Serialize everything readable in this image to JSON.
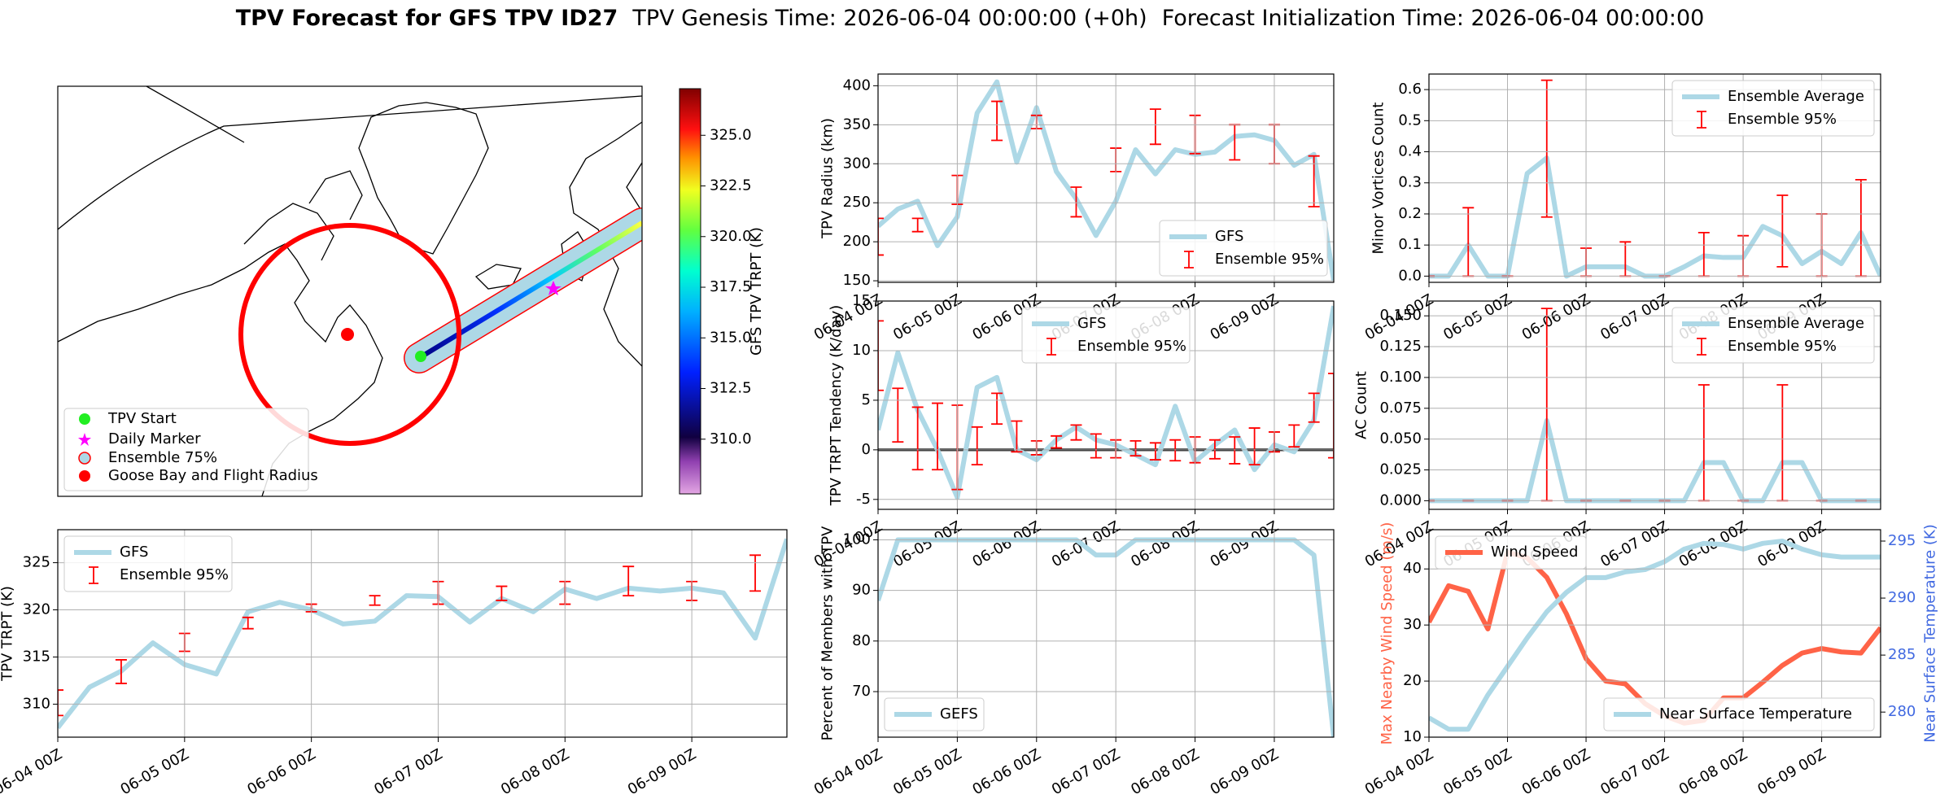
{
  "title": "TPV Forecast for GFS TPV ID27",
  "genesis_time": "TPV Genesis Time: 2026-06-04 00:00:00 (+0h)",
  "init_time": "Forecast Initialization Time: 2026-06-04 00:00:00",
  "map": {
    "legend": [
      "TPV Start",
      "Daily Marker",
      "Ensemble 75%",
      "Goose Bay and Flight Radius"
    ],
    "colorbar": {
      "label": "GFS TPV TRPT (K)",
      "lim": [
        307.3,
        327.3
      ],
      "ticks": [
        {
          "value": 310,
          "label": "310.0"
        },
        {
          "value": 312.5,
          "label": "312.5"
        },
        {
          "value": 315,
          "label": "315.0"
        },
        {
          "value": 317.5,
          "label": "317.5"
        },
        {
          "value": 320,
          "label": "320.0"
        },
        {
          "value": 322.5,
          "label": "322.5"
        },
        {
          "value": 325,
          "label": "325.0"
        }
      ]
    }
  },
  "chart_data": [
    {
      "type": "line",
      "ylabel": "TPV Radius (km)",
      "grid": true,
      "legend": "lower right",
      "x": [
        "06-04 00Z",
        "06-04 06Z",
        "06-04 12Z",
        "06-04 18Z",
        "06-05 00Z",
        "06-05 06Z",
        "06-05 12Z",
        "06-05 18Z",
        "06-06 00Z",
        "06-06 06Z",
        "06-06 12Z",
        "06-06 18Z",
        "06-07 00Z",
        "06-07 06Z",
        "06-07 12Z",
        "06-07 18Z",
        "06-08 00Z",
        "06-08 06Z",
        "06-08 12Z",
        "06-08 18Z",
        "06-09 00Z",
        "06-09 06Z",
        "06-09 12Z",
        "06-09 18Z"
      ],
      "xticks": [
        "06-04 00Z",
        "06-05 00Z",
        "06-06 00Z",
        "06-07 00Z",
        "06-08 00Z",
        "06-09 00Z"
      ],
      "ylim": [
        148,
        415
      ],
      "yticks": [
        150,
        200,
        250,
        300,
        350,
        400
      ],
      "series": [
        {
          "name": "GFS",
          "color": "#add8e6",
          "values": [
            220,
            242,
            252,
            195,
            232,
            365,
            405,
            302,
            372,
            290,
            255,
            208,
            252,
            318,
            287,
            318,
            312,
            315,
            335,
            337,
            330,
            298,
            312,
            150
          ]
        },
        {
          "name": "Ensemble 95%",
          "color": "#ff0000",
          "type": "errorbar",
          "low": [
            183,
            null,
            213,
            null,
            248,
            null,
            330,
            null,
            345,
            null,
            232,
            null,
            290,
            null,
            325,
            null,
            313,
            null,
            305,
            null,
            300,
            null,
            245,
            null
          ],
          "high": [
            230,
            null,
            230,
            null,
            285,
            null,
            380,
            null,
            362,
            null,
            270,
            null,
            320,
            null,
            370,
            null,
            362,
            null,
            350,
            null,
            350,
            null,
            310,
            null
          ]
        }
      ]
    },
    {
      "type": "line",
      "ylabel": "TPV TRPT Tendency (K/day)",
      "grid": true,
      "legend": "upper center",
      "hline": 0,
      "x": [
        "06-04 00Z",
        "06-04 06Z",
        "06-04 12Z",
        "06-04 18Z",
        "06-05 00Z",
        "06-05 06Z",
        "06-05 12Z",
        "06-05 18Z",
        "06-06 00Z",
        "06-06 06Z",
        "06-06 12Z",
        "06-06 18Z",
        "06-07 00Z",
        "06-07 06Z",
        "06-07 12Z",
        "06-07 18Z",
        "06-08 00Z",
        "06-08 06Z",
        "06-08 12Z",
        "06-08 18Z",
        "06-09 00Z",
        "06-09 06Z",
        "06-09 12Z",
        "06-09 18Z"
      ],
      "xticks": [
        "06-04 00Z",
        "06-05 00Z",
        "06-06 00Z",
        "06-07 00Z",
        "06-08 00Z",
        "06-09 00Z"
      ],
      "ylim": [
        -6,
        15
      ],
      "yticks": [
        -5,
        0,
        5,
        10,
        15
      ],
      "series": [
        {
          "name": "GFS",
          "color": "#add8e6",
          "values": [
            2,
            9.8,
            4,
            0,
            -4.8,
            6.3,
            7.3,
            0,
            -1,
            1,
            2.3,
            1,
            0.5,
            -0.5,
            -1.5,
            4.4,
            -1.2,
            0.5,
            2,
            -2,
            0.5,
            -0.2,
            3,
            14.5
          ]
        },
        {
          "name": "Ensemble 95%",
          "color": "#ff0000",
          "type": "errorbar",
          "low": [
            6,
            0.8,
            -2,
            -2,
            -4,
            -1.5,
            2.6,
            -0.2,
            -0.5,
            0.2,
            1,
            -0.8,
            -0.8,
            -0.6,
            -1,
            -1.1,
            -1.3,
            -0.9,
            -1.4,
            -1.5,
            -0.2,
            0.3,
            2.8,
            -0.8
          ],
          "high": [
            13,
            6.2,
            4.3,
            4.7,
            4.5,
            2.3,
            5.7,
            2.9,
            0.9,
            1.4,
            2.5,
            1.6,
            1,
            0.9,
            0.7,
            1,
            1.3,
            1,
            1.3,
            2.2,
            1.8,
            2.5,
            5.7,
            7.7
          ]
        }
      ]
    },
    {
      "type": "line",
      "ylabel": "Minor Vortices Count",
      "grid": true,
      "legend": "upper right",
      "x": [
        "06-04 00Z",
        "06-04 06Z",
        "06-04 12Z",
        "06-04 18Z",
        "06-05 00Z",
        "06-05 06Z",
        "06-05 12Z",
        "06-05 18Z",
        "06-06 00Z",
        "06-06 06Z",
        "06-06 12Z",
        "06-06 18Z",
        "06-07 00Z",
        "06-07 06Z",
        "06-07 12Z",
        "06-07 18Z",
        "06-08 00Z",
        "06-08 06Z",
        "06-08 12Z",
        "06-08 18Z",
        "06-09 00Z",
        "06-09 06Z",
        "06-09 12Z",
        "06-09 18Z"
      ],
      "xticks": [
        "06-04 00Z",
        "06-05 00Z",
        "06-06 00Z",
        "06-07 00Z",
        "06-08 00Z",
        "06-09 00Z"
      ],
      "ylim": [
        -0.02,
        0.65
      ],
      "yticks": [
        {
          "value": 0,
          "label": "0.0"
        },
        0.1,
        0.2,
        0.3,
        0.4,
        0.5,
        0.6
      ],
      "series": [
        {
          "name": "Ensemble Average",
          "color": "#add8e6",
          "values": [
            0,
            0,
            0.1,
            0,
            0,
            0.33,
            0.38,
            0,
            0.03,
            0.03,
            0.03,
            0,
            0,
            0.03,
            0.065,
            0.06,
            0.06,
            0.16,
            0.13,
            0.04,
            0.08,
            0.04,
            0.14,
            0
          ]
        },
        {
          "name": "Ensemble 95%",
          "color": "#ff0000",
          "type": "errorbar",
          "low": [
            0,
            null,
            0,
            null,
            0,
            null,
            0.19,
            null,
            0,
            null,
            0,
            null,
            0,
            null,
            0,
            null,
            0,
            null,
            0.03,
            null,
            0,
            null,
            0,
            null
          ],
          "high": [
            0,
            null,
            0.22,
            null,
            0,
            null,
            0.63,
            null,
            0.09,
            null,
            0.11,
            null,
            0,
            null,
            0.14,
            null,
            0.13,
            null,
            0.26,
            null,
            0.2,
            null,
            0.31,
            null
          ]
        }
      ]
    },
    {
      "type": "line",
      "ylabel": "AC Count",
      "grid": true,
      "legend": "upper right",
      "x": [
        "06-04 00Z",
        "06-04 06Z",
        "06-04 12Z",
        "06-04 18Z",
        "06-05 00Z",
        "06-05 06Z",
        "06-05 12Z",
        "06-05 18Z",
        "06-06 00Z",
        "06-06 06Z",
        "06-06 12Z",
        "06-06 18Z",
        "06-07 00Z",
        "06-07 06Z",
        "06-07 12Z",
        "06-07 18Z",
        "06-08 00Z",
        "06-08 06Z",
        "06-08 12Z",
        "06-08 18Z",
        "06-09 00Z",
        "06-09 06Z",
        "06-09 12Z",
        "06-09 18Z"
      ],
      "xticks": [
        "06-04 00Z",
        "06-05 00Z",
        "06-06 00Z",
        "06-07 00Z",
        "06-08 00Z",
        "06-09 00Z"
      ],
      "ylim": [
        -0.007,
        0.162
      ],
      "yticks": [
        {
          "value": 0,
          "label": "0.000"
        },
        0.025,
        {
          "value": 0.05,
          "label": "0.050"
        },
        0.075,
        {
          "value": 0.1,
          "label": "0.100"
        },
        0.125,
        {
          "value": 0.15,
          "label": "0.150"
        }
      ],
      "series": [
        {
          "name": "Ensemble Average",
          "color": "#add8e6",
          "values": [
            0,
            0,
            0,
            0,
            0,
            0,
            0.065,
            0,
            0,
            0,
            0,
            0,
            0,
            0,
            0.031,
            0.031,
            0,
            0,
            0.031,
            0.031,
            0,
            0,
            0,
            0
          ]
        },
        {
          "name": "Ensemble 95%",
          "color": "#ff0000",
          "type": "errorbar",
          "low": [
            0,
            null,
            0,
            null,
            0,
            null,
            0,
            null,
            0,
            null,
            0,
            null,
            0,
            null,
            0,
            null,
            0,
            null,
            0,
            null,
            0,
            null,
            0,
            null
          ],
          "high": [
            0,
            null,
            0,
            null,
            0,
            null,
            0.156,
            null,
            0,
            null,
            0,
            null,
            0,
            null,
            0.094,
            null,
            0,
            null,
            0.094,
            null,
            0,
            null,
            0,
            null
          ]
        }
      ]
    },
    {
      "type": "line",
      "ylabel": "TPV TRPT (K)",
      "grid": true,
      "legend": "upper left",
      "x": [
        "06-04 00Z",
        "06-04 06Z",
        "06-04 12Z",
        "06-04 18Z",
        "06-05 00Z",
        "06-05 06Z",
        "06-05 12Z",
        "06-05 18Z",
        "06-06 00Z",
        "06-06 06Z",
        "06-06 12Z",
        "06-06 18Z",
        "06-07 00Z",
        "06-07 06Z",
        "06-07 12Z",
        "06-07 18Z",
        "06-08 00Z",
        "06-08 06Z",
        "06-08 12Z",
        "06-08 18Z",
        "06-09 00Z",
        "06-09 06Z",
        "06-09 12Z",
        "06-09 18Z"
      ],
      "xticks": [
        "06-04 00Z",
        "06-05 00Z",
        "06-06 00Z",
        "06-07 00Z",
        "06-08 00Z",
        "06-09 00Z"
      ],
      "ylim": [
        306.5,
        328.5
      ],
      "yticks": [
        310,
        315,
        320,
        325
      ],
      "series": [
        {
          "name": "GFS",
          "color": "#add8e6",
          "values": [
            307.5,
            311.8,
            313.5,
            316.5,
            314.2,
            313.2,
            319.8,
            320.8,
            320,
            318.5,
            318.8,
            321.5,
            321.4,
            318.7,
            321.2,
            319.8,
            322.2,
            321.2,
            322.3,
            322,
            322.3,
            321.8,
            317,
            327.5
          ]
        },
        {
          "name": "Ensemble 95%",
          "color": "#ff0000",
          "type": "errorbar",
          "low": [
            308.8,
            null,
            312.2,
            null,
            315.6,
            null,
            318,
            null,
            319.8,
            null,
            320.5,
            null,
            320.6,
            null,
            321,
            null,
            320.6,
            null,
            321.5,
            null,
            321,
            null,
            322,
            null
          ],
          "high": [
            311.5,
            null,
            314.7,
            null,
            317.5,
            null,
            319.2,
            null,
            320.6,
            null,
            321.5,
            null,
            323,
            null,
            322.5,
            null,
            323,
            null,
            324.6,
            null,
            323,
            null,
            325.8,
            null
          ]
        }
      ]
    },
    {
      "type": "line",
      "ylabel": "Percent of Members with TPV",
      "grid": true,
      "legend": "lower left",
      "x": [
        "06-04 00Z",
        "06-04 06Z",
        "06-04 12Z",
        "06-04 18Z",
        "06-05 00Z",
        "06-05 06Z",
        "06-05 12Z",
        "06-05 18Z",
        "06-06 00Z",
        "06-06 06Z",
        "06-06 12Z",
        "06-06 18Z",
        "06-07 00Z",
        "06-07 06Z",
        "06-07 12Z",
        "06-07 18Z",
        "06-08 00Z",
        "06-08 06Z",
        "06-08 12Z",
        "06-08 18Z",
        "06-09 00Z",
        "06-09 06Z",
        "06-09 12Z",
        "06-09 18Z"
      ],
      "xticks": [
        "06-04 00Z",
        "06-05 00Z",
        "06-06 00Z",
        "06-07 00Z",
        "06-08 00Z",
        "06-09 00Z"
      ],
      "ylim": [
        61,
        102
      ],
      "yticks": [
        70,
        80,
        90,
        100
      ],
      "series": [
        {
          "name": "GEFS",
          "color": "#add8e6",
          "values": [
            88,
            100,
            100,
            100,
            100,
            100,
            100,
            100,
            100,
            100,
            100,
            97,
            97,
            100,
            100,
            100,
            100,
            100,
            100,
            100,
            100,
            100,
            97,
            61
          ]
        }
      ]
    },
    {
      "type": "line",
      "ylabel": "Max Nearby Wind Speed (m/s)",
      "ylabel_color": "#ff6347",
      "y2label": "Near Surface Temperature (K)",
      "y2label_color": "#4169e1",
      "grid": true,
      "legend": "upper left",
      "y2legend": "lower right",
      "x": [
        "06-04 00Z",
        "06-04 06Z",
        "06-04 12Z",
        "06-04 18Z",
        "06-05 00Z",
        "06-05 06Z",
        "06-05 12Z",
        "06-05 18Z",
        "06-06 00Z",
        "06-06 06Z",
        "06-06 12Z",
        "06-06 18Z",
        "06-07 00Z",
        "06-07 06Z",
        "06-07 12Z",
        "06-07 18Z",
        "06-08 00Z",
        "06-08 06Z",
        "06-08 12Z",
        "06-08 18Z",
        "06-09 00Z",
        "06-09 06Z",
        "06-09 12Z",
        "06-09 18Z"
      ],
      "xticks": [
        "06-04 00Z",
        "06-05 00Z",
        "06-06 00Z",
        "06-07 00Z",
        "06-08 00Z",
        "06-09 00Z"
      ],
      "ylim": [
        10,
        47
      ],
      "yticks": [
        10,
        20,
        30,
        40
      ],
      "y2lim": [
        277.8,
        296
      ],
      "y2ticks": [
        280,
        285,
        290,
        295
      ],
      "series": [
        {
          "name": "Wind Speed",
          "color": "#ff6347",
          "values": [
            30.5,
            37,
            36,
            29.3,
            43,
            42,
            38.5,
            32,
            24,
            20,
            19.5,
            16,
            13.8,
            12.5,
            13,
            17,
            17,
            19.8,
            22.8,
            25,
            25.8,
            25.2,
            25,
            29.5
          ]
        },
        {
          "name": "Near Surface Temperature",
          "color": "#add8e6",
          "axis": "y2",
          "values": [
            279.5,
            278.5,
            278.5,
            281.5,
            284,
            286.5,
            288.8,
            290.5,
            291.8,
            291.8,
            292.3,
            292.5,
            293.2,
            294.3,
            294.8,
            294.7,
            294.3,
            294.8,
            295,
            294.3,
            293.8,
            293.6,
            293.6,
            293.6
          ]
        }
      ]
    }
  ]
}
